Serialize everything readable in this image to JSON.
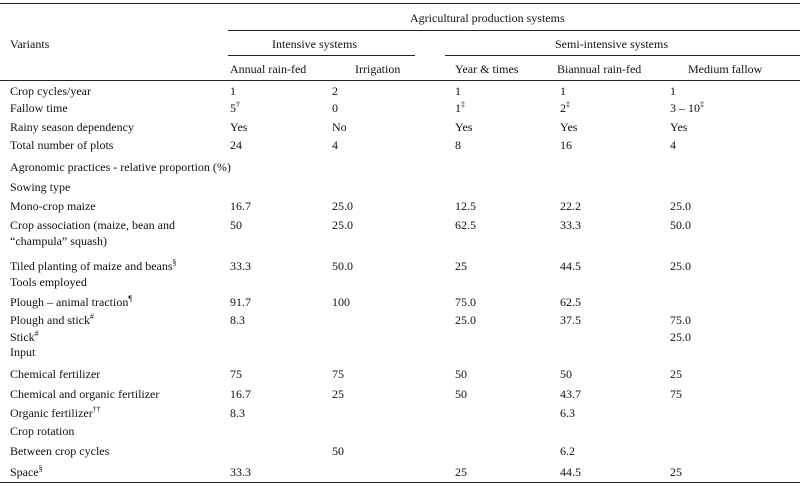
{
  "table": {
    "group_header": "Agricultural production systems",
    "stub_header": "Variants",
    "groups": [
      "Intensive systems",
      "Semi-intensive systems"
    ],
    "columns": [
      "Annual rain-fed",
      "Irrigation",
      "Year & times",
      "Biannual rain-fed",
      "Medium fallow"
    ],
    "rows": [
      {
        "label": "Crop cycles/year",
        "cells": [
          "1",
          "2",
          "1",
          "1",
          "1"
        ]
      },
      {
        "label": "Fallow time",
        "cells": [
          {
            "text": "5",
            "sup": "†"
          },
          "0",
          {
            "text": "1",
            "sup": "‡"
          },
          {
            "text": "2",
            "sup": "‡"
          },
          {
            "text": "3 – 10",
            "sup": "‡"
          }
        ]
      },
      {
        "label": "Rainy season dependency",
        "cells": [
          "Yes",
          "No",
          "Yes",
          "Yes",
          "Yes"
        ]
      },
      {
        "label": "Total number of plots",
        "cells": [
          "24",
          "4",
          "8",
          "16",
          "4"
        ]
      },
      {
        "label": "Agronomic practices - relative proportion (%)"
      },
      {
        "label": "Sowing type"
      },
      {
        "label": "Mono-crop maize",
        "cells": [
          "16.7",
          "25.0",
          "12.5",
          "22.2",
          "25.0"
        ]
      },
      {
        "label": "Crop association (maize, bean and “champula” squash)",
        "cells": [
          "50",
          "25.0",
          "62.5",
          "33.3",
          "50.0"
        ]
      },
      {
        "label": "Tiled planting of maize and beans",
        "label_sup": "§",
        "cells": [
          "33.3",
          "50.0",
          "25",
          "44.5",
          "25.0"
        ]
      },
      {
        "label": "Tools employed"
      },
      {
        "label": "Plough – animal traction",
        "label_sup": "¶",
        "cells": [
          "91.7",
          "100",
          "75.0",
          "62.5",
          null
        ]
      },
      {
        "label": "Plough and stick",
        "label_sup": "#",
        "cells": [
          "8.3",
          null,
          "25.0",
          "37.5",
          "75.0"
        ]
      },
      {
        "label": "Stick",
        "label_sup": "#",
        "cells": [
          null,
          null,
          null,
          null,
          "25.0"
        ]
      },
      {
        "label": "Input"
      },
      {
        "label": "Chemical fertilizer",
        "cells": [
          "75",
          "75",
          "50",
          "50",
          "25"
        ]
      },
      {
        "label": "Chemical and organic fertilizer",
        "cells": [
          "16.7",
          "25",
          "50",
          "43.7",
          "75"
        ]
      },
      {
        "label": "Organic fertilizer",
        "label_sup": "††",
        "cells": [
          "8.3",
          null,
          null,
          "6.3",
          null
        ]
      },
      {
        "label": "Crop rotation"
      },
      {
        "label": "Between crop cycles",
        "cells": [
          null,
          "50",
          null,
          "6.2",
          null
        ]
      },
      {
        "label": "Space",
        "label_sup": "§",
        "cells": [
          "33.3",
          null,
          "25",
          "44.5",
          "25"
        ]
      }
    ]
  }
}
